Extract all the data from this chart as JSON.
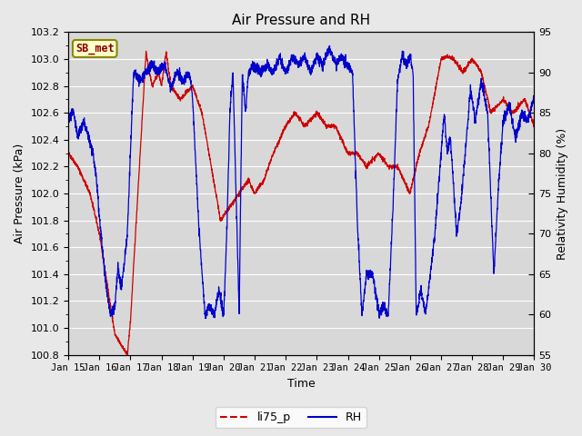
{
  "title": "Air Pressure and RH",
  "xlabel": "Time",
  "ylabel_left": "Air Pressure (kPa)",
  "ylabel_right": "Relativity Humidity (%)",
  "legend_label1": "li75_p",
  "legend_label2": "RH",
  "annotation": "SB_met",
  "ylim_left": [
    100.8,
    103.2
  ],
  "ylim_right": [
    55,
    95
  ],
  "x_start": 15,
  "x_end": 30,
  "x_ticks": [
    15,
    16,
    17,
    18,
    19,
    20,
    21,
    22,
    23,
    24,
    25,
    26,
    27,
    28,
    29,
    30
  ],
  "x_tick_labels": [
    "Jan 15",
    "Jan 16",
    "Jan 17",
    "Jan 18",
    "Jan 19",
    "Jan 20",
    "Jan 21",
    "Jan 22",
    "Jan 23",
    "Jan 24",
    "Jan 25",
    "Jan 26",
    "Jan 27",
    "Jan 28",
    "Jan 29",
    "Jan 30"
  ],
  "color_pressure": "#cc0000",
  "color_rh": "#0000cc",
  "background_color": "#d8d8d8",
  "fig_bg": "#e8e8e8",
  "grid_color": "#ffffff",
  "annotation_bg": "#ffffcc",
  "annotation_border": "#888800",
  "yticks_left": [
    100.8,
    101.0,
    101.2,
    101.4,
    101.6,
    101.8,
    102.0,
    102.2,
    102.4,
    102.6,
    102.8,
    103.0,
    103.2
  ],
  "yticks_right": [
    55,
    60,
    65,
    70,
    75,
    80,
    85,
    90,
    95
  ]
}
